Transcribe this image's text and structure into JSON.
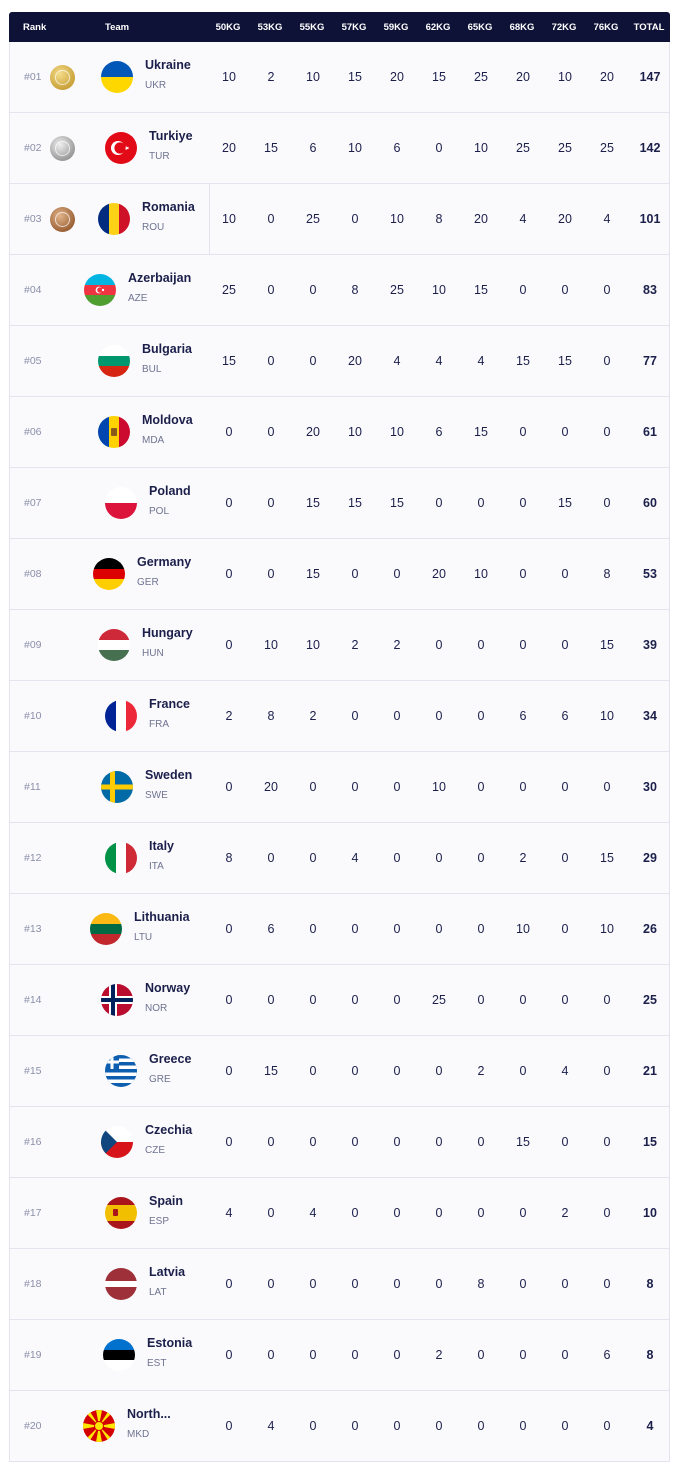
{
  "header": {
    "rank": "Rank",
    "team": "Team",
    "weights": [
      "50KG",
      "53KG",
      "55KG",
      "57KG",
      "59KG",
      "62KG",
      "65KG",
      "68KG",
      "72KG",
      "76KG"
    ],
    "total": "TOTAL"
  },
  "rows": [
    {
      "rank": "#01",
      "name": "Ukraine",
      "code": "UKR",
      "scores": [
        "10",
        "2",
        "10",
        "15",
        "20",
        "15",
        "25",
        "20",
        "10",
        "20"
      ],
      "total": "147",
      "flag": "ukraine",
      "medal": "gold"
    },
    {
      "rank": "#02",
      "name": "Turkiye",
      "code": "TUR",
      "scores": [
        "20",
        "15",
        "6",
        "10",
        "6",
        "0",
        "10",
        "25",
        "25",
        "25"
      ],
      "total": "142",
      "flag": "turkiye",
      "medal": "silver"
    },
    {
      "rank": "#03",
      "name": "Romania",
      "code": "ROU",
      "scores": [
        "10",
        "0",
        "25",
        "0",
        "10",
        "8",
        "20",
        "4",
        "20",
        "4"
      ],
      "total": "101",
      "flag": "romania",
      "medal": "bronze"
    },
    {
      "rank": "#04",
      "name": "Azerbaijan",
      "code": "AZE",
      "scores": [
        "25",
        "0",
        "0",
        "8",
        "25",
        "10",
        "15",
        "0",
        "0",
        "0"
      ],
      "total": "83",
      "flag": "azerbaijan"
    },
    {
      "rank": "#05",
      "name": "Bulgaria",
      "code": "BUL",
      "scores": [
        "15",
        "0",
        "0",
        "20",
        "4",
        "4",
        "4",
        "15",
        "15",
        "0"
      ],
      "total": "77",
      "flag": "bulgaria"
    },
    {
      "rank": "#06",
      "name": "Moldova",
      "code": "MDA",
      "scores": [
        "0",
        "0",
        "20",
        "10",
        "10",
        "6",
        "15",
        "0",
        "0",
        "0"
      ],
      "total": "61",
      "flag": "moldova"
    },
    {
      "rank": "#07",
      "name": "Poland",
      "code": "POL",
      "scores": [
        "0",
        "0",
        "15",
        "15",
        "15",
        "0",
        "0",
        "0",
        "15",
        "0"
      ],
      "total": "60",
      "flag": "poland"
    },
    {
      "rank": "#08",
      "name": "Germany",
      "code": "GER",
      "scores": [
        "0",
        "0",
        "15",
        "0",
        "0",
        "20",
        "10",
        "0",
        "0",
        "8"
      ],
      "total": "53",
      "flag": "germany"
    },
    {
      "rank": "#09",
      "name": "Hungary",
      "code": "HUN",
      "scores": [
        "0",
        "10",
        "10",
        "2",
        "2",
        "0",
        "0",
        "0",
        "0",
        "15"
      ],
      "total": "39",
      "flag": "hungary"
    },
    {
      "rank": "#10",
      "name": "France",
      "code": "FRA",
      "scores": [
        "2",
        "8",
        "2",
        "0",
        "0",
        "0",
        "0",
        "6",
        "6",
        "10"
      ],
      "total": "34",
      "flag": "france"
    },
    {
      "rank": "#11",
      "name": "Sweden",
      "code": "SWE",
      "scores": [
        "0",
        "20",
        "0",
        "0",
        "0",
        "10",
        "0",
        "0",
        "0",
        "0"
      ],
      "total": "30",
      "flag": "sweden"
    },
    {
      "rank": "#12",
      "name": "Italy",
      "code": "ITA",
      "scores": [
        "8",
        "0",
        "0",
        "4",
        "0",
        "0",
        "0",
        "2",
        "0",
        "15"
      ],
      "total": "29",
      "flag": "italy"
    },
    {
      "rank": "#13",
      "name": "Lithuania",
      "code": "LTU",
      "scores": [
        "0",
        "6",
        "0",
        "0",
        "0",
        "0",
        "0",
        "10",
        "0",
        "10"
      ],
      "total": "26",
      "flag": "lithuania"
    },
    {
      "rank": "#14",
      "name": "Norway",
      "code": "NOR",
      "scores": [
        "0",
        "0",
        "0",
        "0",
        "0",
        "25",
        "0",
        "0",
        "0",
        "0"
      ],
      "total": "25",
      "flag": "norway"
    },
    {
      "rank": "#15",
      "name": "Greece",
      "code": "GRE",
      "scores": [
        "0",
        "15",
        "0",
        "0",
        "0",
        "0",
        "2",
        "0",
        "4",
        "0"
      ],
      "total": "21",
      "flag": "greece"
    },
    {
      "rank": "#16",
      "name": "Czechia",
      "code": "CZE",
      "scores": [
        "0",
        "0",
        "0",
        "0",
        "0",
        "0",
        "0",
        "15",
        "0",
        "0"
      ],
      "total": "15",
      "flag": "czechia"
    },
    {
      "rank": "#17",
      "name": "Spain",
      "code": "ESP",
      "scores": [
        "4",
        "0",
        "4",
        "0",
        "0",
        "0",
        "0",
        "0",
        "2",
        "0"
      ],
      "total": "10",
      "flag": "spain"
    },
    {
      "rank": "#18",
      "name": "Latvia",
      "code": "LAT",
      "scores": [
        "0",
        "0",
        "0",
        "0",
        "0",
        "0",
        "8",
        "0",
        "0",
        "0"
      ],
      "total": "8",
      "flag": "latvia"
    },
    {
      "rank": "#19",
      "name": "Estonia",
      "code": "EST",
      "scores": [
        "0",
        "0",
        "0",
        "0",
        "0",
        "2",
        "0",
        "0",
        "0",
        "6"
      ],
      "total": "8",
      "flag": "estonia"
    },
    {
      "rank": "#20",
      "name": "North...",
      "code": "MKD",
      "scores": [
        "0",
        "4",
        "0",
        "0",
        "0",
        "0",
        "0",
        "0",
        "0",
        "0"
      ],
      "total": "4",
      "flag": "north-macedonia"
    }
  ]
}
